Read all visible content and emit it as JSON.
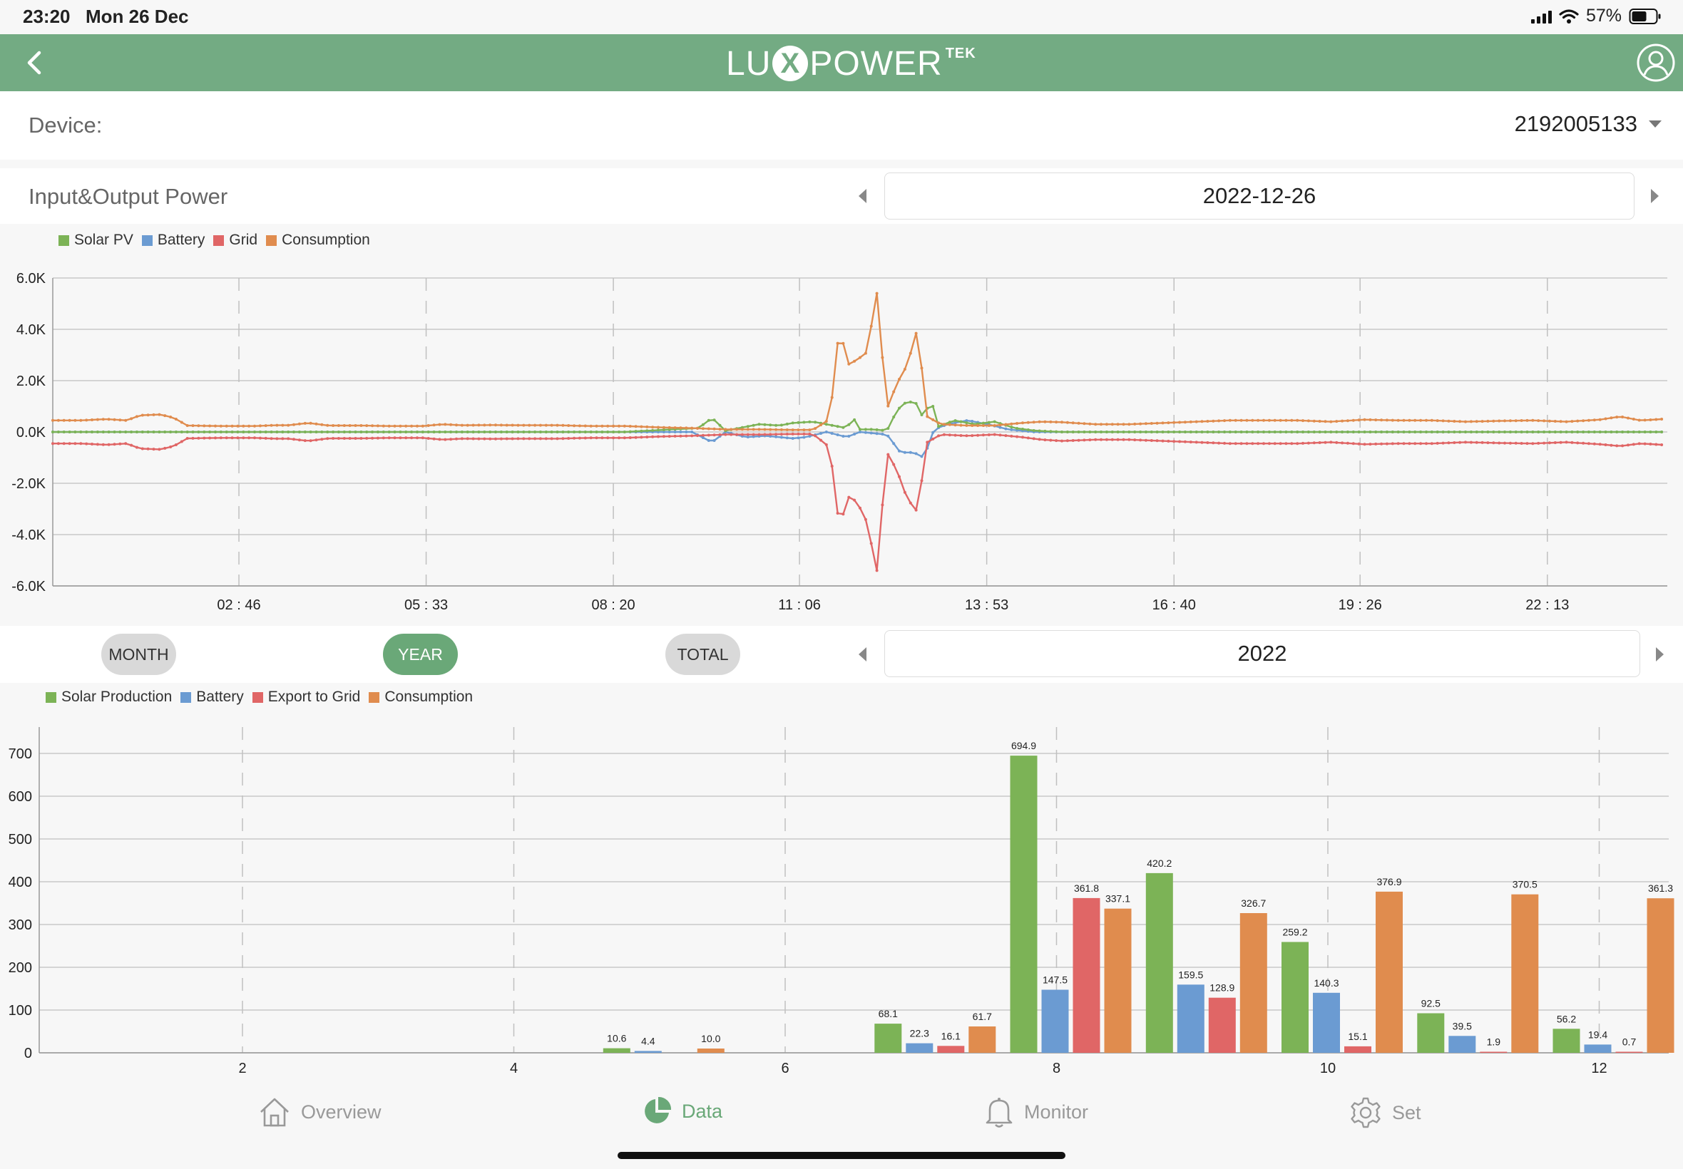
{
  "status_bar": {
    "time": "23:20",
    "date": "Mon 26 Dec",
    "battery_pct": "57%"
  },
  "header": {
    "brand_prefix": "LU",
    "brand_x": "X",
    "brand_main": "POWER",
    "brand_suffix": "TEK",
    "color": "#73ab83"
  },
  "device": {
    "label": "Device:",
    "selected": "2192005133"
  },
  "io_section": {
    "title": "Input&Output Power",
    "date": "2022-12-26"
  },
  "period": {
    "month_label": "MONTH",
    "year_label": "YEAR",
    "total_label": "TOTAL",
    "selected": "YEAR",
    "value": "2022"
  },
  "tabs": [
    {
      "label": "Overview",
      "icon": "home-icon"
    },
    {
      "label": "Data",
      "icon": "pie-chart-icon",
      "active": true
    },
    {
      "label": "Monitor",
      "icon": "bell-icon"
    },
    {
      "label": "Set",
      "icon": "gear-icon"
    }
  ],
  "chart_data": [
    {
      "type": "line",
      "title": "",
      "xlabel": "",
      "ylabel": "",
      "ylim": [
        -6000,
        6000
      ],
      "xlim": [
        "00:00",
        "23:55"
      ],
      "y_tick_labels": [
        "6.0K",
        "4.0K",
        "2.0K",
        "0.0K",
        "-2.0K",
        "-4.0K",
        "-6.0K"
      ],
      "y_ticks": [
        6000,
        4000,
        2000,
        0,
        -2000,
        -4000,
        -6000
      ],
      "x_tick_labels": [
        "02 : 46",
        "05 : 33",
        "08 : 20",
        "11 : 06",
        "13 : 53",
        "16 : 40",
        "19 : 26",
        "22 : 13"
      ],
      "x_ticks_hours": [
        2.767,
        5.55,
        8.333,
        11.1,
        13.883,
        16.667,
        19.433,
        22.217
      ],
      "grid": true,
      "legend_position": "top-left",
      "series": [
        {
          "name": "Solar PV",
          "color": "#7cb356",
          "points": [
            [
              0,
              0
            ],
            [
              8.5,
              0
            ],
            [
              9.2,
              100
            ],
            [
              9.6,
              150
            ],
            [
              9.8,
              550
            ],
            [
              10.0,
              50
            ],
            [
              10.2,
              150
            ],
            [
              10.5,
              300
            ],
            [
              10.8,
              250
            ],
            [
              11.0,
              350
            ],
            [
              11.3,
              400
            ],
            [
              11.5,
              300
            ],
            [
              11.8,
              150
            ],
            [
              11.9,
              550
            ],
            [
              12.0,
              100
            ],
            [
              12.2,
              100
            ],
            [
              12.4,
              50
            ],
            [
              12.55,
              850
            ],
            [
              12.7,
              1200
            ],
            [
              12.85,
              1100
            ],
            [
              12.95,
              450
            ],
            [
              13.05,
              1400
            ],
            [
              13.15,
              200
            ],
            [
              13.4,
              450
            ],
            [
              13.7,
              300
            ],
            [
              14.0,
              400
            ],
            [
              14.3,
              150
            ],
            [
              14.6,
              50
            ],
            [
              15.0,
              0
            ],
            [
              23.92,
              0
            ]
          ]
        },
        {
          "name": "Battery",
          "color": "#6b9bd2",
          "points": [
            [
              0,
              0
            ],
            [
              9.5,
              0
            ],
            [
              9.8,
              -400
            ],
            [
              10.0,
              0
            ],
            [
              10.3,
              -200
            ],
            [
              10.6,
              -150
            ],
            [
              11.0,
              -250
            ],
            [
              11.2,
              -200
            ],
            [
              11.5,
              0
            ],
            [
              11.8,
              -200
            ],
            [
              12.0,
              0
            ],
            [
              12.4,
              -100
            ],
            [
              12.6,
              -800
            ],
            [
              12.8,
              -800
            ],
            [
              12.95,
              -1000
            ],
            [
              13.1,
              100
            ],
            [
              13.3,
              300
            ],
            [
              13.6,
              450
            ],
            [
              13.9,
              300
            ],
            [
              14.2,
              100
            ],
            [
              14.6,
              0
            ],
            [
              23.92,
              0
            ]
          ]
        },
        {
          "name": "Grid",
          "color": "#e06666",
          "points": [
            [
              0,
              -450
            ],
            [
              0.4,
              -450
            ],
            [
              0.8,
              -500
            ],
            [
              1.1,
              -450
            ],
            [
              1.3,
              -650
            ],
            [
              1.6,
              -680
            ],
            [
              1.8,
              -550
            ],
            [
              2.0,
              -250
            ],
            [
              2.5,
              -230
            ],
            [
              3.0,
              -230
            ],
            [
              3.3,
              -260
            ],
            [
              3.5,
              -260
            ],
            [
              3.8,
              -350
            ],
            [
              4.1,
              -250
            ],
            [
              4.6,
              -250
            ],
            [
              5.0,
              -230
            ],
            [
              5.5,
              -230
            ],
            [
              5.8,
              -300
            ],
            [
              6.1,
              -260
            ],
            [
              6.5,
              -270
            ],
            [
              7.0,
              -260
            ],
            [
              7.5,
              -260
            ],
            [
              8.0,
              -230
            ],
            [
              8.5,
              -230
            ],
            [
              9.0,
              -180
            ],
            [
              9.5,
              -150
            ],
            [
              10.0,
              -100
            ],
            [
              10.5,
              -100
            ],
            [
              11.0,
              -80
            ],
            [
              11.3,
              -80
            ],
            [
              11.55,
              -600
            ],
            [
              11.7,
              -3900
            ],
            [
              11.8,
              -2500
            ],
            [
              11.95,
              -2700
            ],
            [
              12.1,
              -3500
            ],
            [
              12.25,
              -5400
            ],
            [
              12.4,
              -800
            ],
            [
              12.55,
              -1500
            ],
            [
              12.7,
              -2600
            ],
            [
              12.85,
              -3100
            ],
            [
              13.0,
              -400
            ],
            [
              13.2,
              -100
            ],
            [
              13.6,
              -150
            ],
            [
              14.0,
              -100
            ],
            [
              14.4,
              -200
            ],
            [
              14.7,
              -300
            ],
            [
              15.0,
              -350
            ],
            [
              15.5,
              -300
            ],
            [
              16.0,
              -300
            ],
            [
              16.5,
              -350
            ],
            [
              17.0,
              -400
            ],
            [
              17.5,
              -450
            ],
            [
              18.0,
              -450
            ],
            [
              18.5,
              -450
            ],
            [
              19.0,
              -400
            ],
            [
              19.5,
              -480
            ],
            [
              20.0,
              -450
            ],
            [
              20.5,
              -450
            ],
            [
              21.0,
              -400
            ],
            [
              21.5,
              -430
            ],
            [
              22.0,
              -450
            ],
            [
              22.5,
              -400
            ],
            [
              23.0,
              -480
            ],
            [
              23.3,
              -550
            ],
            [
              23.6,
              -450
            ],
            [
              23.92,
              -500
            ]
          ]
        },
        {
          "name": "Consumption",
          "color": "#e08c4e",
          "points": [
            [
              0,
              450
            ],
            [
              0.4,
              450
            ],
            [
              0.8,
              500
            ],
            [
              1.1,
              450
            ],
            [
              1.3,
              650
            ],
            [
              1.6,
              680
            ],
            [
              1.8,
              550
            ],
            [
              2.0,
              250
            ],
            [
              2.5,
              230
            ],
            [
              3.0,
              230
            ],
            [
              3.3,
              260
            ],
            [
              3.5,
              260
            ],
            [
              3.8,
              350
            ],
            [
              4.1,
              250
            ],
            [
              4.6,
              250
            ],
            [
              5.0,
              230
            ],
            [
              5.5,
              230
            ],
            [
              5.8,
              300
            ],
            [
              6.1,
              260
            ],
            [
              6.5,
              270
            ],
            [
              7.0,
              260
            ],
            [
              7.5,
              260
            ],
            [
              8.0,
              230
            ],
            [
              8.5,
              230
            ],
            [
              9.0,
              180
            ],
            [
              9.5,
              150
            ],
            [
              10.0,
              100
            ],
            [
              10.5,
              100
            ],
            [
              11.0,
              80
            ],
            [
              11.3,
              80
            ],
            [
              11.55,
              500
            ],
            [
              11.7,
              4300
            ],
            [
              11.8,
              2600
            ],
            [
              11.95,
              2800
            ],
            [
              12.1,
              3100
            ],
            [
              12.25,
              5400
            ],
            [
              12.4,
              900
            ],
            [
              12.55,
              1900
            ],
            [
              12.7,
              2600
            ],
            [
              12.85,
              4000
            ],
            [
              13.0,
              600
            ],
            [
              13.2,
              300
            ],
            [
              13.6,
              250
            ],
            [
              14.0,
              250
            ],
            [
              14.4,
              350
            ],
            [
              14.7,
              400
            ],
            [
              15.0,
              380
            ],
            [
              15.5,
              300
            ],
            [
              16.0,
              300
            ],
            [
              16.5,
              350
            ],
            [
              17.0,
              400
            ],
            [
              17.5,
              450
            ],
            [
              18.0,
              450
            ],
            [
              18.5,
              450
            ],
            [
              19.0,
              400
            ],
            [
              19.5,
              480
            ],
            [
              20.0,
              450
            ],
            [
              20.5,
              450
            ],
            [
              21.0,
              400
            ],
            [
              21.5,
              430
            ],
            [
              22.0,
              450
            ],
            [
              22.5,
              400
            ],
            [
              23.0,
              480
            ],
            [
              23.3,
              600
            ],
            [
              23.6,
              450
            ],
            [
              23.92,
              500
            ]
          ]
        }
      ]
    },
    {
      "type": "bar",
      "title": "",
      "xlabel": "",
      "ylabel": "",
      "ylim": [
        0,
        700
      ],
      "y_ticks": [
        0,
        100,
        200,
        300,
        400,
        500,
        600,
        700
      ],
      "x_tick_labels": [
        "2",
        "4",
        "6",
        "8",
        "10",
        "12"
      ],
      "x_ticks": [
        2,
        4,
        6,
        8,
        10,
        12
      ],
      "categories": [
        1,
        2,
        3,
        4,
        5,
        6,
        7,
        8,
        9,
        10,
        11,
        12
      ],
      "grid": true,
      "legend_position": "top-left",
      "series": [
        {
          "name": "Solar Production",
          "color": "#7cb356",
          "values": [
            0,
            0,
            0,
            0,
            10.6,
            0,
            68.1,
            694.9,
            420.2,
            259.2,
            92.5,
            56.2
          ]
        },
        {
          "name": "Battery",
          "color": "#6b9bd2",
          "values": [
            0,
            0,
            0,
            0,
            4.4,
            0,
            22.3,
            147.5,
            159.5,
            140.3,
            39.5,
            19.4
          ]
        },
        {
          "name": "Export to Grid",
          "color": "#e06666",
          "values": [
            0,
            0,
            0,
            0,
            0,
            0,
            16.1,
            361.8,
            128.9,
            15.1,
            1.9,
            0.7
          ]
        },
        {
          "name": "Consumption",
          "color": "#e08c4e",
          "values": [
            0,
            0,
            0,
            0,
            10.0,
            0,
            61.7,
            337.1,
            326.7,
            376.9,
            370.5,
            361.3
          ]
        }
      ]
    }
  ]
}
